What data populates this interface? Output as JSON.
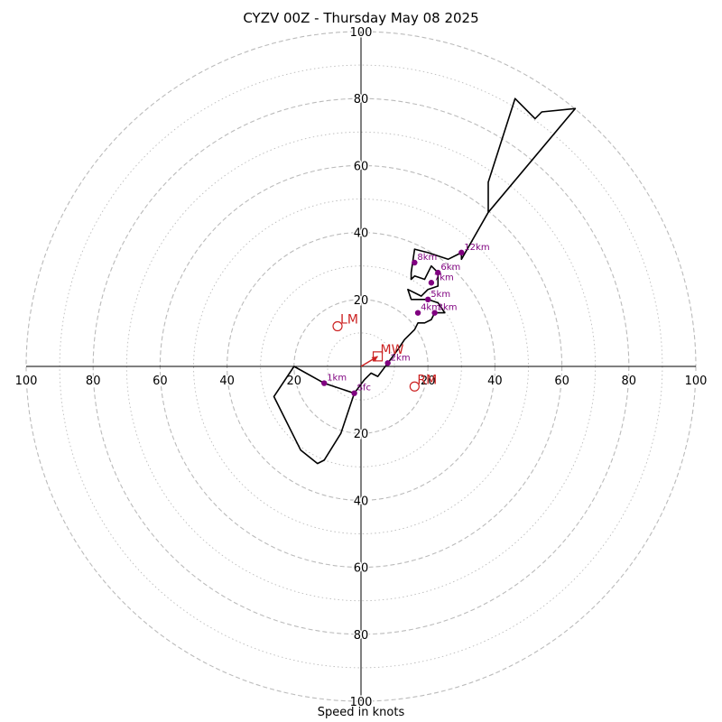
{
  "chart_data": {
    "type": "hodograph",
    "title": "CYZV 00Z - Thursday May 08 2025",
    "xlabel": "Speed in knots",
    "ylabel": "",
    "range": 100,
    "ring_labels": [
      "20",
      "40",
      "60",
      "80",
      "100"
    ],
    "colors": {
      "trace": "#000000",
      "height": "#800080",
      "motion": "#cc2222",
      "grid": "#bbbbbb"
    },
    "hodograph": [
      [
        -2,
        -8
      ],
      [
        -11,
        -5
      ],
      [
        -20,
        0
      ],
      [
        -26,
        -9
      ],
      [
        -18,
        -25
      ],
      [
        -13,
        -29
      ],
      [
        -11,
        -28
      ],
      [
        -6,
        -20
      ],
      [
        -3,
        -11
      ],
      [
        -2,
        -8
      ],
      [
        1,
        -4
      ],
      [
        3,
        -2
      ],
      [
        5,
        -3
      ],
      [
        8,
        1
      ],
      [
        11,
        5
      ],
      [
        13,
        8
      ],
      [
        16,
        11
      ],
      [
        17,
        13
      ],
      [
        19,
        13
      ],
      [
        21,
        14
      ],
      [
        22,
        16
      ],
      [
        25,
        16
      ],
      [
        23,
        19
      ],
      [
        20,
        20
      ],
      [
        18,
        20
      ],
      [
        15,
        20
      ],
      [
        14,
        23
      ],
      [
        18,
        21
      ],
      [
        20,
        23
      ],
      [
        23,
        24
      ],
      [
        23,
        28
      ],
      [
        21,
        30
      ],
      [
        19,
        26
      ],
      [
        16,
        27
      ],
      [
        15,
        26
      ],
      [
        15,
        28
      ],
      [
        16,
        35
      ],
      [
        20,
        34
      ],
      [
        26,
        32
      ],
      [
        30,
        34
      ],
      [
        30,
        32
      ],
      [
        38,
        46
      ],
      [
        38,
        55
      ],
      [
        46,
        80
      ],
      [
        52,
        74
      ],
      [
        54,
        76
      ],
      [
        64,
        77
      ],
      [
        38,
        46
      ]
    ],
    "height_markers": [
      {
        "label": "Sfc",
        "u": -2,
        "v": -8
      },
      {
        "label": "1km",
        "u": -11,
        "v": -5
      },
      {
        "label": "2km",
        "u": 8,
        "v": 1
      },
      {
        "label": "3km",
        "u": 22,
        "v": 16
      },
      {
        "label": "4km",
        "u": 17,
        "v": 16
      },
      {
        "label": "5km",
        "u": 20,
        "v": 20
      },
      {
        "label": "6km",
        "u": 23,
        "v": 28
      },
      {
        "label": "7km",
        "u": 21,
        "v": 25
      },
      {
        "label": "8km",
        "u": 16,
        "v": 31
      },
      {
        "label": "12km",
        "u": 30,
        "v": 34
      }
    ],
    "storm_motions": [
      {
        "label": "LM",
        "u": -7,
        "v": 12,
        "marker": "circle"
      },
      {
        "label": "RM",
        "u": 16,
        "v": -6,
        "marker": "circle"
      },
      {
        "label": "MW",
        "u": 5,
        "v": 3,
        "marker": "square"
      }
    ],
    "shear_vector": {
      "from": [
        0,
        0
      ],
      "to": [
        5,
        3
      ]
    }
  }
}
